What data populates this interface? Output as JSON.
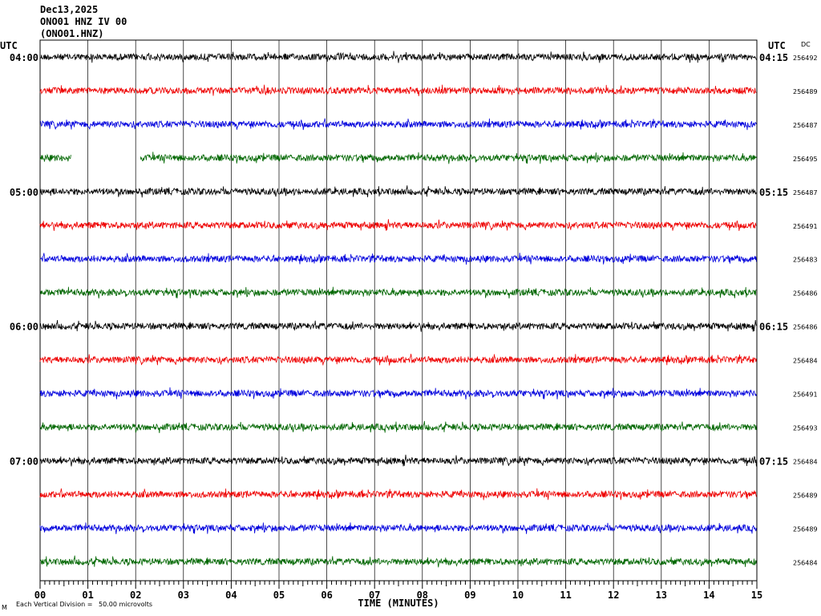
{
  "header": {
    "date": "Dec13,2025",
    "station": "ONO01 HNZ IV 00",
    "channel": "(ONO01.HNZ)"
  },
  "chart_data": {
    "type": "line",
    "title": "",
    "xlabel": "TIME (MINUTES)",
    "ylabel": "",
    "xlim": [
      0,
      15
    ],
    "x_tick_labels": [
      "00",
      "01",
      "02",
      "03",
      "04",
      "05",
      "06",
      "07",
      "08",
      "09",
      "10",
      "11",
      "12",
      "13",
      "14",
      "15"
    ],
    "left_axis_title": "UTC",
    "right_axis_title": "UTC",
    "dc_title": "DC",
    "left_hour_labels": [
      "04:00",
      "05:00",
      "06:00",
      "07:00"
    ],
    "right_hour_labels": [
      "04:15",
      "05:15",
      "06:15",
      "07:15"
    ],
    "trace_colors": [
      "#000000",
      "#ee0000",
      "#0000dd",
      "#006600"
    ],
    "dc_values": [
      "256492",
      "256489",
      "256487",
      "256495",
      "256487",
      "256491",
      "256483",
      "256486",
      "256486",
      "256484",
      "256491",
      "256493",
      "256484",
      "256489",
      "256489",
      "256484"
    ],
    "gap_trace_index": 3,
    "gap_minutes": [
      0.65,
      2.1
    ],
    "vertical_scale": "Each Vertical Division =   50.00 microvolts",
    "footer_mark": "M"
  }
}
